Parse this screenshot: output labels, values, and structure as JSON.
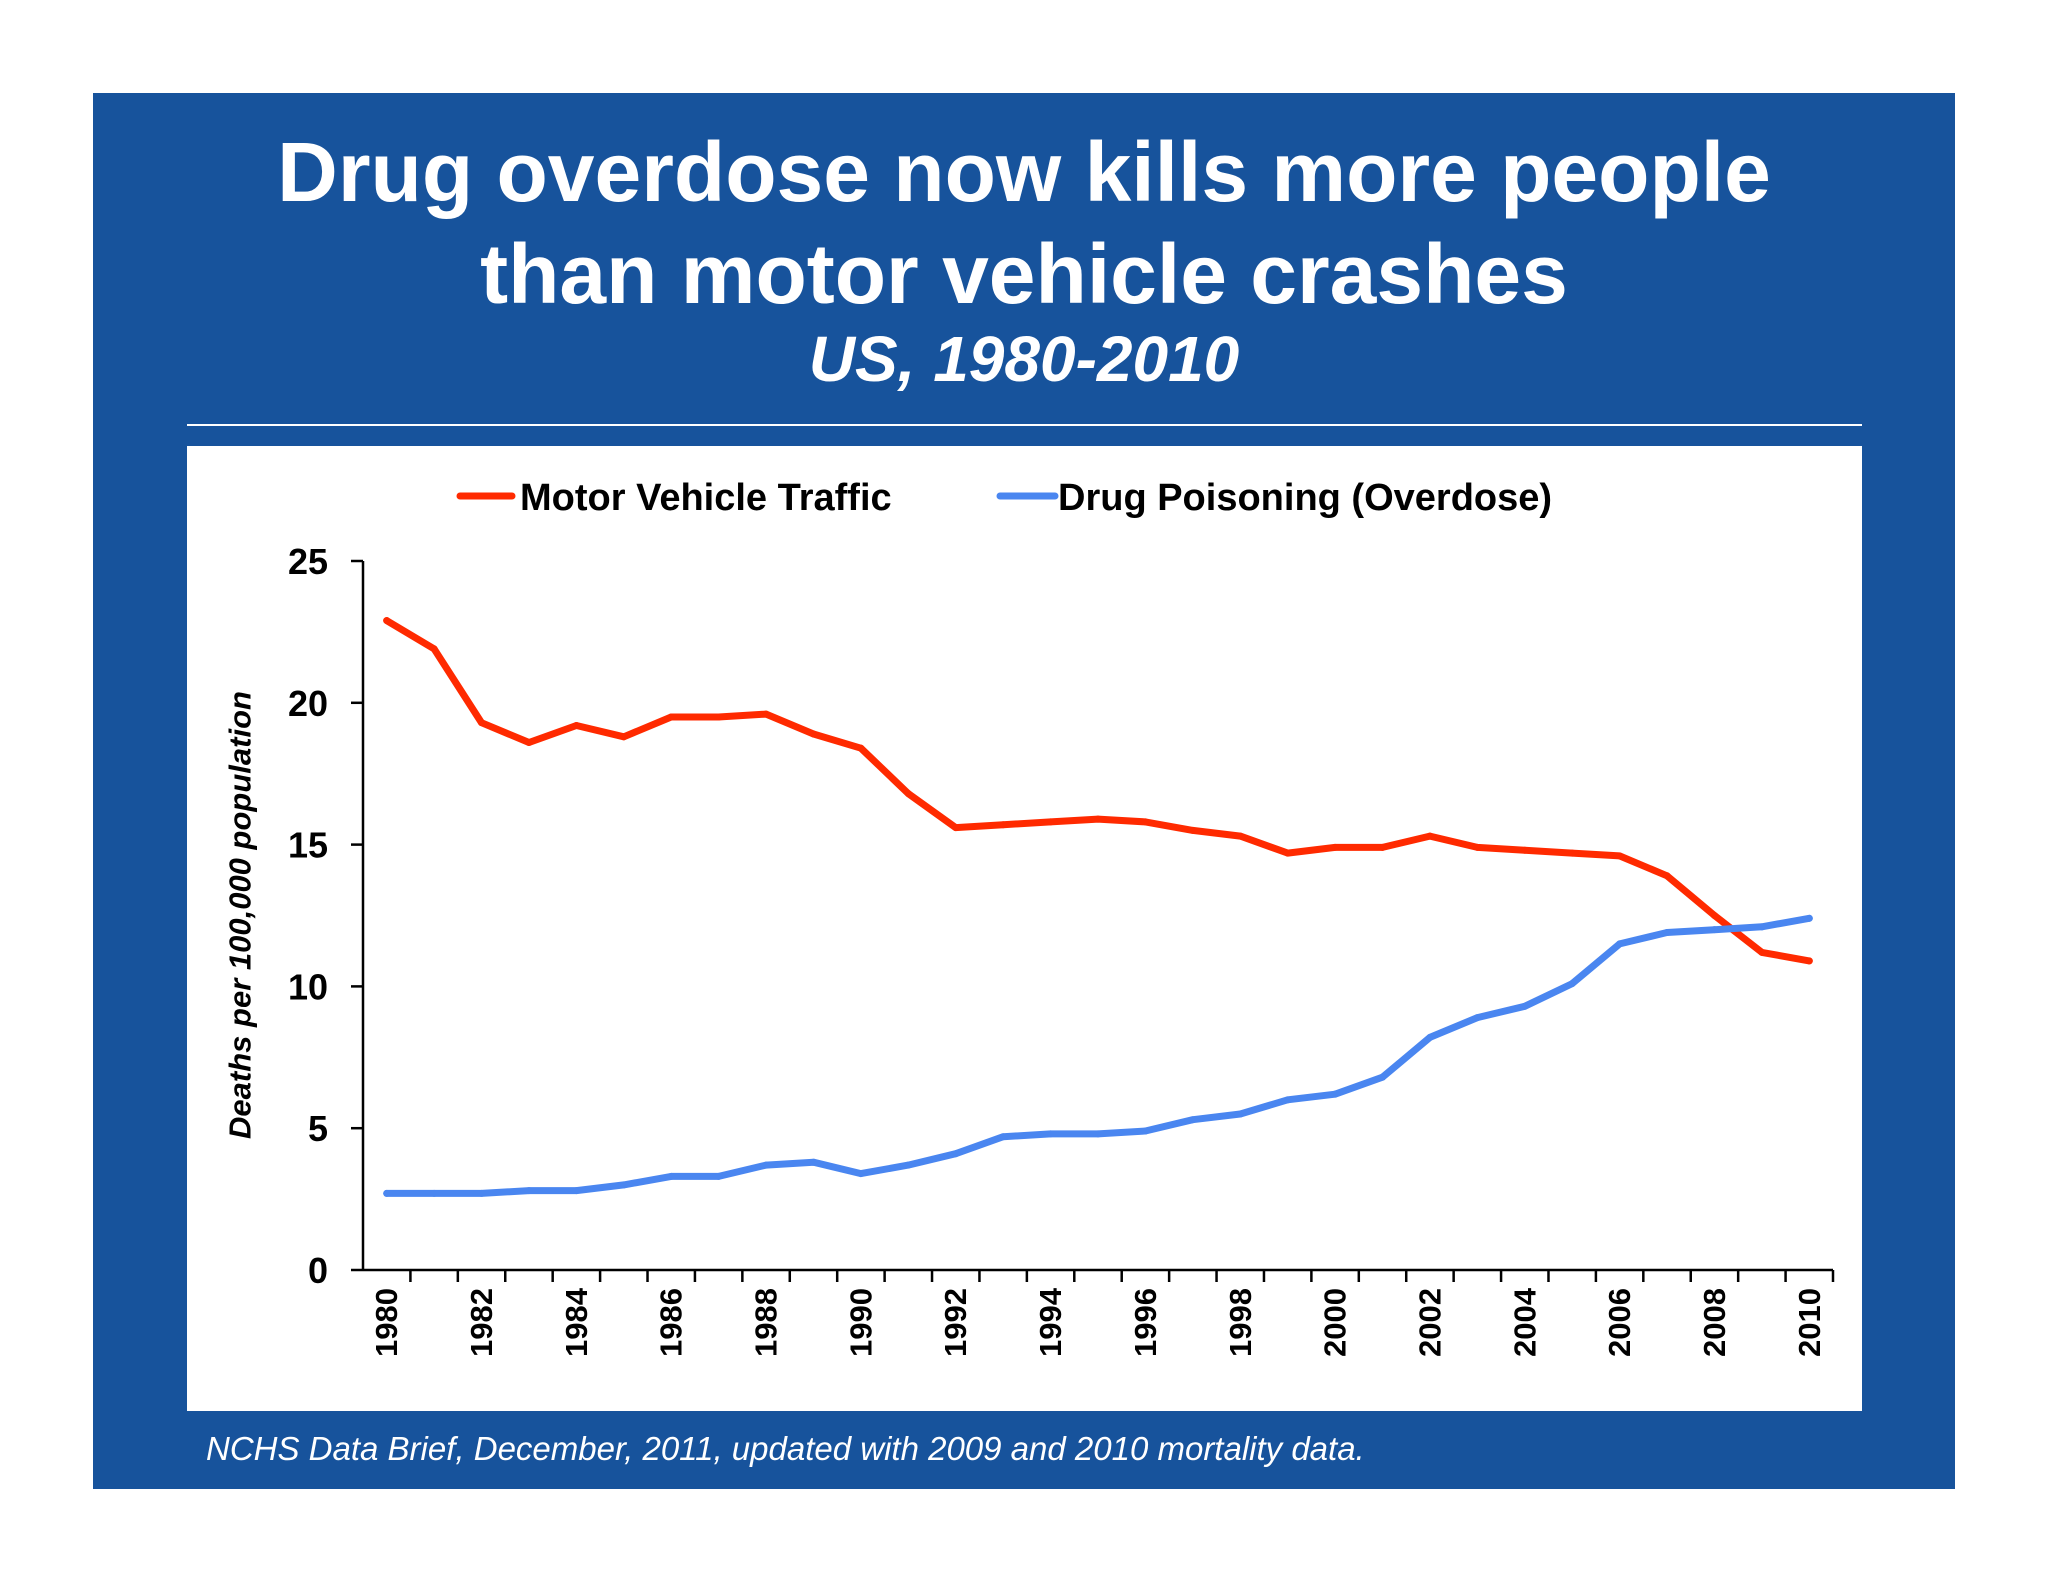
{
  "title_lines": [
    "Drug overdose now kills more people",
    "than motor vehicle crashes"
  ],
  "subtitle": "US, 1980-2010",
  "footer": "NCHS Data Brief, December, 2011, updated with 2009 and 2010 mortality data.",
  "colors": {
    "background": "#17539c",
    "motor_vehicle": "#ff2a00",
    "drug_poisoning": "#4a86f0"
  },
  "chart_data": {
    "type": "line",
    "title": "",
    "xlabel": "",
    "ylabel": "Deaths per 100,000 population",
    "ylim": [
      0,
      25
    ],
    "yticks": [
      "0",
      "5",
      "10",
      "15",
      "20",
      "25"
    ],
    "xticks": [
      "1980",
      "1982",
      "1984",
      "1986",
      "1988",
      "1990",
      "1992",
      "1994",
      "1996",
      "1998",
      "2000",
      "2002",
      "2004",
      "2006",
      "2008",
      "2010"
    ],
    "grid": false,
    "legend_placement": "top",
    "x": [
      1980,
      1981,
      1982,
      1983,
      1984,
      1985,
      1986,
      1987,
      1988,
      1989,
      1990,
      1991,
      1992,
      1993,
      1994,
      1995,
      1996,
      1997,
      1998,
      1999,
      2000,
      2001,
      2002,
      2003,
      2004,
      2005,
      2006,
      2007,
      2008,
      2009,
      2010
    ],
    "series": [
      {
        "name": "Motor Vehicle Traffic",
        "color": "#ff2a00",
        "values": [
          22.9,
          21.9,
          19.3,
          18.6,
          19.2,
          18.8,
          19.5,
          19.5,
          19.6,
          18.9,
          18.4,
          16.8,
          15.6,
          15.7,
          15.8,
          15.9,
          15.8,
          15.5,
          15.3,
          14.7,
          14.9,
          14.9,
          15.3,
          14.9,
          14.8,
          14.7,
          14.6,
          13.9,
          12.5,
          11.2,
          10.9
        ]
      },
      {
        "name": "Drug Poisoning (Overdose)",
        "color": "#4a86f0",
        "values": [
          2.7,
          2.7,
          2.7,
          2.8,
          2.8,
          3.0,
          3.3,
          3.3,
          3.7,
          3.8,
          3.4,
          3.7,
          4.1,
          4.7,
          4.8,
          4.8,
          4.9,
          5.3,
          5.5,
          6.0,
          6.2,
          6.8,
          8.2,
          8.9,
          9.3,
          10.1,
          11.5,
          11.9,
          12.0,
          12.1,
          12.4
        ]
      }
    ]
  }
}
